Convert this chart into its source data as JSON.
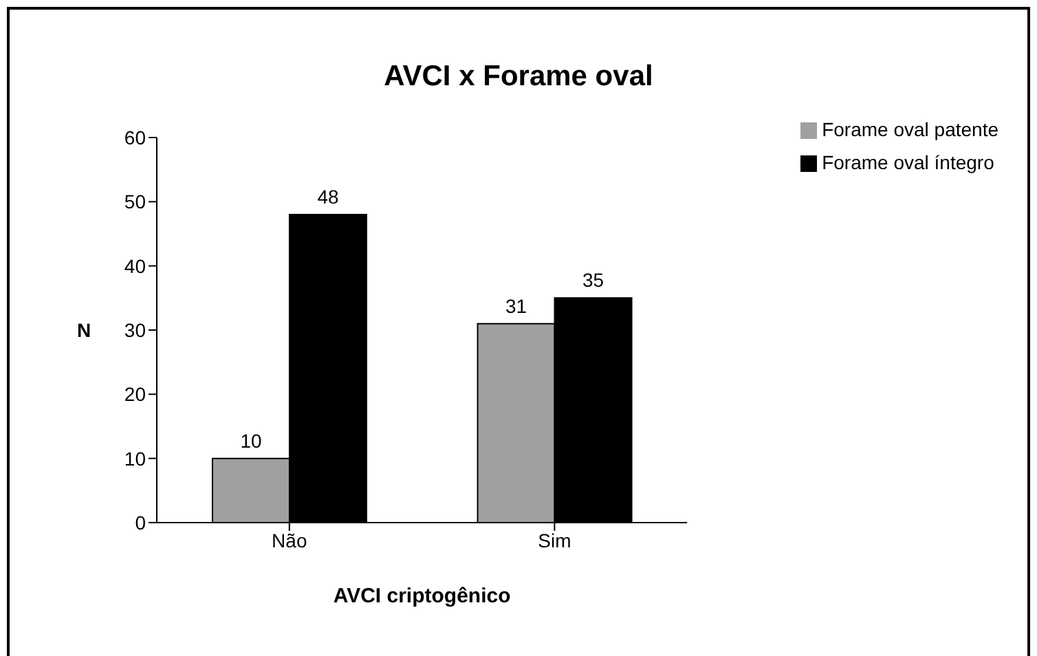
{
  "chart_data": {
    "type": "bar",
    "title": "AVCI x Forame oval",
    "xlabel": "AVCI criptogênico",
    "ylabel": "N",
    "categories": [
      "Não",
      "Sim"
    ],
    "series": [
      {
        "name": "Forame oval patente",
        "color": "#a0a0a0",
        "values": [
          10,
          31
        ]
      },
      {
        "name": "Forame oval íntegro",
        "color": "#000000",
        "values": [
          48,
          35
        ]
      }
    ],
    "ylim": [
      0,
      60
    ],
    "yticks": [
      0,
      10,
      20,
      30,
      40,
      50,
      60
    ],
    "legend": "top right",
    "data_labels": true
  }
}
